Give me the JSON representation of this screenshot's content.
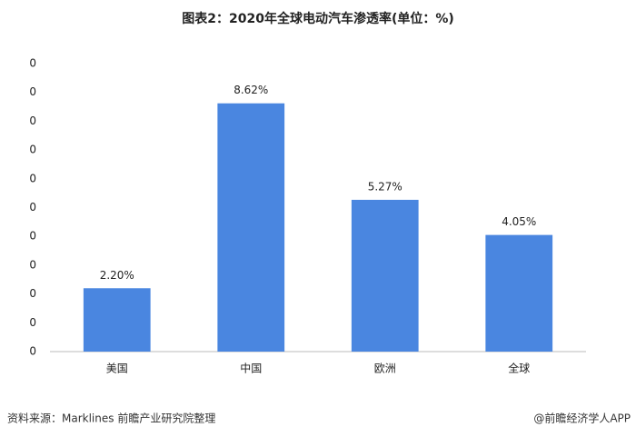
{
  "chart_data": {
    "type": "bar",
    "title": "图表2：2020年全球电动汽车渗透率(单位：%)",
    "categories": [
      "美国",
      "中国",
      "欧洲",
      "全球"
    ],
    "values": [
      2.2,
      8.62,
      5.27,
      4.05
    ],
    "value_labels": [
      "2.20%",
      "8.62%",
      "5.27%",
      "4.05%"
    ],
    "color": "#4a86e0",
    "ylim": [
      0,
      10
    ],
    "yticks": [
      0,
      {
        "value": 1,
        "label": "0"
      },
      {
        "value": 2,
        "label": "0"
      },
      {
        "value": 3,
        "label": "0"
      },
      {
        "value": 4,
        "label": "0"
      },
      {
        "value": 5,
        "label": "0"
      },
      {
        "value": 6,
        "label": "0"
      },
      {
        "value": 7,
        "label": "0"
      },
      {
        "value": 8,
        "label": "0"
      },
      {
        "value": 9,
        "label": "0"
      },
      {
        "value": 10,
        "label": "0"
      }
    ],
    "grid": false,
    "source": "资料来源：Marklines 前瞻产业研究院整理",
    "credit": "@前瞻经济学人APP"
  }
}
